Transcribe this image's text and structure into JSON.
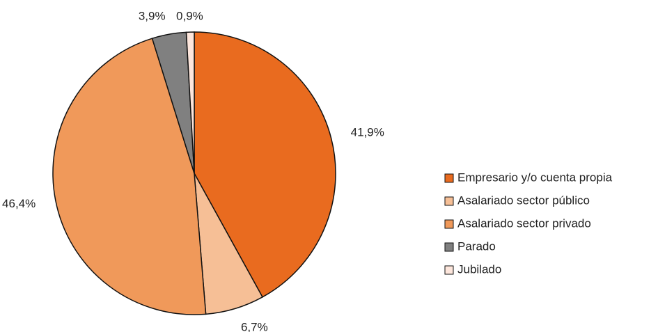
{
  "chart_data": {
    "type": "pie",
    "categories": [
      "Empresario y/o cuenta propia",
      "Asalariado sector público",
      "Asalariado sector privado",
      "Parado",
      "Jubilado"
    ],
    "values": [
      41.9,
      6.7,
      46.4,
      3.9,
      0.9
    ],
    "value_labels": [
      "41,9%",
      "6,7%",
      "46,4%",
      "3,9%",
      "0,9%"
    ],
    "colors": [
      "#e96b1f",
      "#f6bf96",
      "#f0995a",
      "#808080",
      "#fde6dc"
    ],
    "legend": "right"
  }
}
